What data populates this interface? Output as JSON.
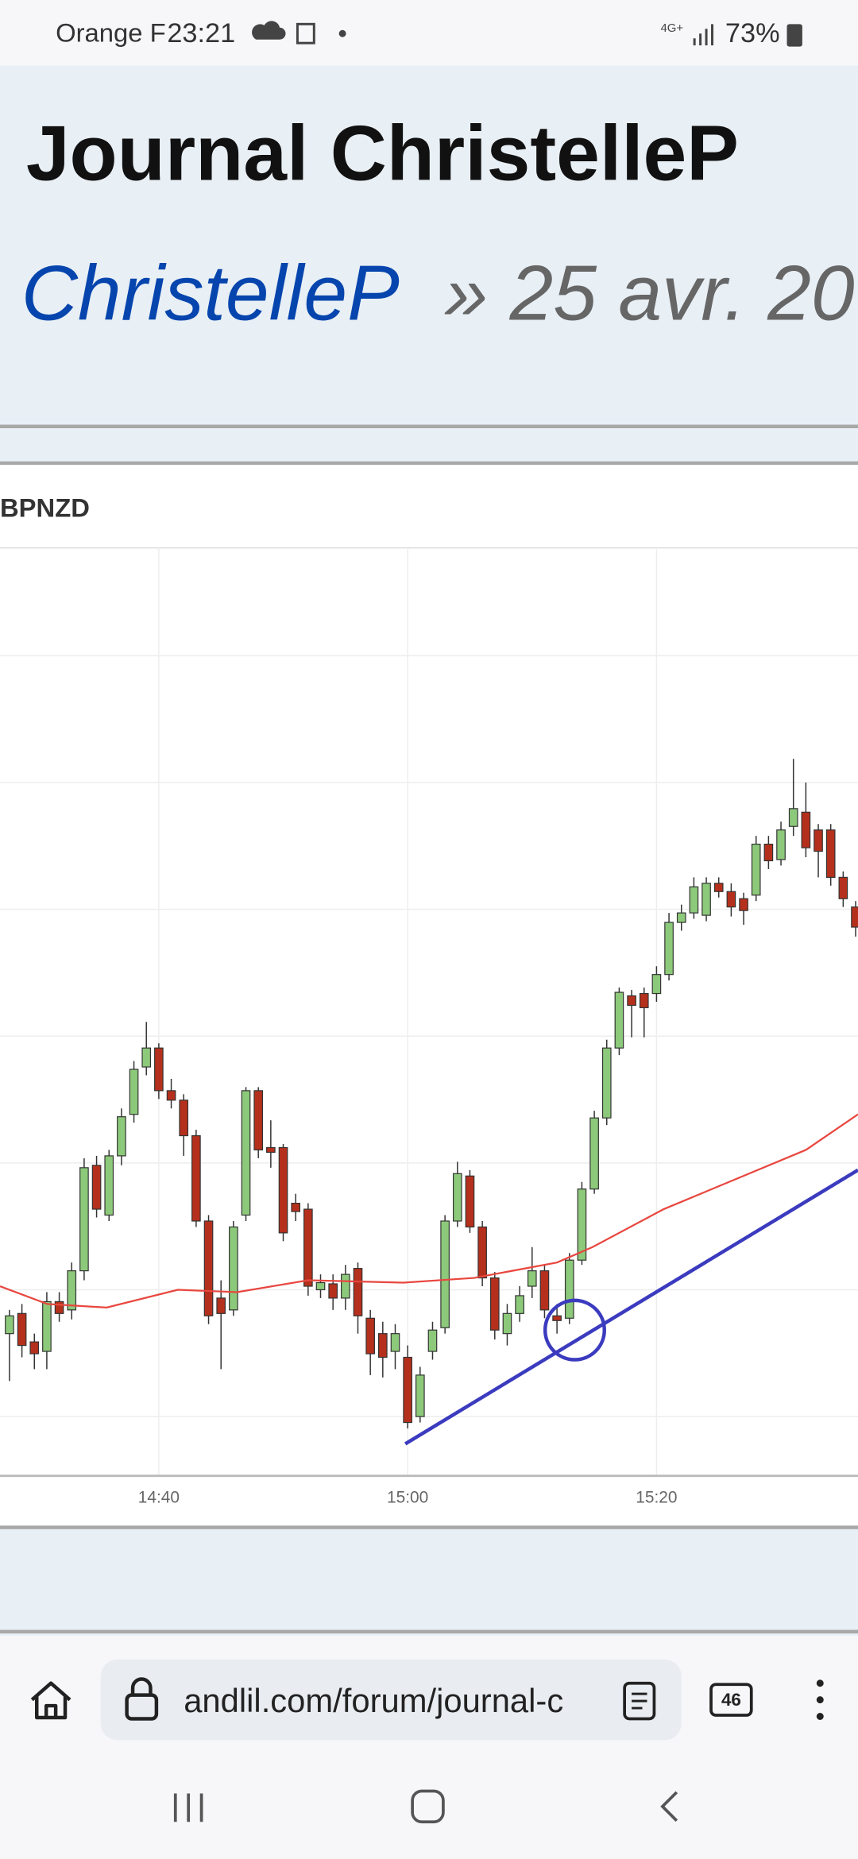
{
  "status_bar": {
    "carrier": "Orange F",
    "time": "23:21",
    "network": "4G+",
    "battery": "73%"
  },
  "header": {
    "title": "Journal ChristelleP",
    "breadcrumb_link": "ChristelleP",
    "breadcrumb_text": "» 25 avr. 20"
  },
  "chart_data": {
    "type": "candlestick",
    "title": "BPNZD",
    "categories": [
      null,
      null,
      null,
      null,
      null,
      null,
      null,
      null,
      null,
      null,
      null,
      null,
      "14:40",
      null,
      null,
      null,
      null,
      null,
      null,
      null,
      null,
      null,
      null,
      null,
      null,
      null,
      null,
      null,
      null,
      null,
      null,
      null,
      "15:00",
      null,
      null,
      null,
      null,
      null,
      null,
      null,
      null,
      null,
      null,
      null,
      null,
      null,
      null,
      null,
      null,
      null,
      null,
      null,
      "15:20",
      null,
      null,
      null,
      null,
      null,
      null,
      null,
      null,
      null,
      null,
      null,
      null,
      null,
      null,
      null,
      null
    ],
    "open": [
      120,
      137,
      113,
      105,
      147,
      140,
      173,
      262,
      220,
      270,
      305,
      345,
      361,
      325,
      317,
      287,
      215,
      150,
      140,
      220,
      325,
      277,
      277,
      230,
      225,
      157,
      162,
      150,
      175,
      133,
      120,
      105,
      100,
      50,
      105,
      125,
      215,
      253,
      210,
      167,
      120,
      137,
      160,
      173,
      135,
      133,
      182,
      242,
      302,
      361,
      405,
      407,
      407,
      423,
      467,
      475,
      473,
      500,
      493,
      487,
      490,
      533,
      520,
      548,
      560,
      545,
      545,
      505,
      480
    ],
    "high": [
      140,
      145,
      120,
      155,
      155,
      180,
      268,
      270,
      275,
      310,
      350,
      383,
      365,
      335,
      322,
      292,
      220,
      165,
      215,
      328,
      328,
      300,
      280,
      238,
      230,
      170,
      170,
      178,
      180,
      140,
      130,
      128,
      110,
      92,
      130,
      220,
      265,
      258,
      215,
      172,
      145,
      160,
      193,
      178,
      145,
      188,
      248,
      308,
      368,
      412,
      410,
      412,
      430,
      475,
      482,
      505,
      505,
      505,
      500,
      492,
      540,
      540,
      552,
      605,
      585,
      550,
      550,
      510,
      485
    ],
    "low": [
      80,
      100,
      90,
      90,
      130,
      132,
      165,
      218,
      215,
      262,
      298,
      338,
      318,
      310,
      270,
      210,
      128,
      90,
      135,
      215,
      268,
      260,
      198,
      215,
      152,
      150,
      140,
      140,
      120,
      85,
      83,
      90,
      40,
      45,
      98,
      120,
      210,
      205,
      160,
      115,
      110,
      130,
      150,
      133,
      120,
      128,
      178,
      238,
      296,
      355,
      370,
      370,
      400,
      418,
      460,
      470,
      468,
      488,
      472,
      465,
      485,
      512,
      515,
      540,
      522,
      505,
      498,
      480,
      455
    ],
    "close": [
      135,
      110,
      103,
      147,
      137,
      173,
      260,
      225,
      270,
      303,
      343,
      361,
      325,
      317,
      287,
      215,
      135,
      137,
      210,
      325,
      275,
      273,
      205,
      223,
      160,
      163,
      150,
      170,
      135,
      103,
      100,
      120,
      45,
      85,
      123,
      215,
      255,
      210,
      167,
      123,
      137,
      152,
      173,
      140,
      131,
      182,
      242,
      302,
      361,
      408,
      397,
      395,
      423,
      467,
      475,
      497,
      500,
      493,
      480,
      477,
      533,
      519,
      545,
      563,
      530,
      527,
      505,
      487,
      463
    ],
    "ylim": [
      0,
      780
    ],
    "up_color": "#8cc97a",
    "down_color": "#b5301c",
    "grid": true
  },
  "browser": {
    "url": "andlil.com/forum/journal-c",
    "tabs": 46
  }
}
